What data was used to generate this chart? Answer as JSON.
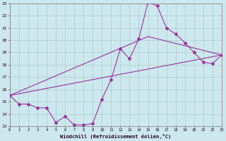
{
  "xlabel": "Windchill (Refroidissement éolien,°C)",
  "bg_color": "#cce8ee",
  "grid_color": "#aacccc",
  "line_color": "#993399",
  "xmin": 0,
  "xmax": 23,
  "ymin": 13,
  "ymax": 23,
  "series1_x": [
    0,
    1,
    2,
    3,
    4,
    5,
    6,
    7,
    8,
    9,
    10,
    11,
    12,
    13,
    14,
    15,
    16,
    17,
    18,
    19,
    20,
    21,
    22,
    23
  ],
  "series1_y": [
    15.5,
    14.8,
    14.8,
    14.5,
    14.5,
    13.3,
    13.8,
    13.1,
    13.1,
    13.2,
    15.2,
    16.8,
    19.3,
    18.5,
    20.1,
    23.1,
    22.8,
    21.0,
    20.5,
    19.8,
    19.0,
    18.2,
    18.1,
    18.8
  ],
  "series2_x": [
    0,
    23
  ],
  "series2_y": [
    15.5,
    18.8
  ],
  "series3_x": [
    0,
    15,
    23
  ],
  "series3_y": [
    15.5,
    20.3,
    18.8
  ]
}
